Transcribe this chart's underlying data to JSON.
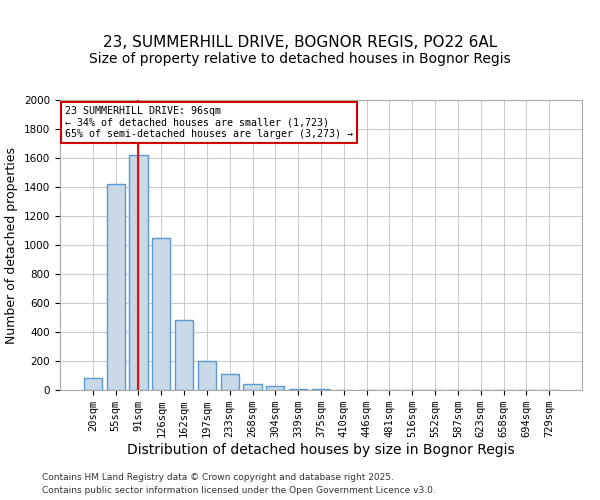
{
  "title1": "23, SUMMERHILL DRIVE, BOGNOR REGIS, PO22 6AL",
  "title2": "Size of property relative to detached houses in Bognor Regis",
  "xlabel": "Distribution of detached houses by size in Bognor Regis",
  "ylabel": "Number of detached properties",
  "categories": [
    "20sqm",
    "55sqm",
    "91sqm",
    "126sqm",
    "162sqm",
    "197sqm",
    "233sqm",
    "268sqm",
    "304sqm",
    "339sqm",
    "375sqm",
    "410sqm",
    "446sqm",
    "481sqm",
    "516sqm",
    "552sqm",
    "587sqm",
    "623sqm",
    "658sqm",
    "694sqm",
    "729sqm"
  ],
  "values": [
    80,
    1420,
    1620,
    1050,
    480,
    200,
    110,
    40,
    30,
    10,
    10,
    0,
    0,
    0,
    0,
    0,
    0,
    0,
    0,
    0,
    0
  ],
  "bar_color": "#c9d9e8",
  "bar_edge_color": "#5b9bd5",
  "bar_edge_width": 1.0,
  "red_line_index": 2,
  "annotation_text": "23 SUMMERHILL DRIVE: 96sqm\n← 34% of detached houses are smaller (1,723)\n65% of semi-detached houses are larger (3,273) →",
  "annotation_box_color": "#ffffff",
  "annotation_box_edge_color": "#cc0000",
  "grid_color": "#cccccc",
  "ylim": [
    0,
    2000
  ],
  "yticks": [
    0,
    200,
    400,
    600,
    800,
    1000,
    1200,
    1400,
    1600,
    1800,
    2000
  ],
  "footer1": "Contains HM Land Registry data © Crown copyright and database right 2025.",
  "footer2": "Contains public sector information licensed under the Open Government Licence v3.0.",
  "bg_color": "#ffffff",
  "title1_fontsize": 11,
  "title2_fontsize": 10,
  "tick_fontsize": 7.5,
  "ylabel_fontsize": 9,
  "xlabel_fontsize": 10
}
